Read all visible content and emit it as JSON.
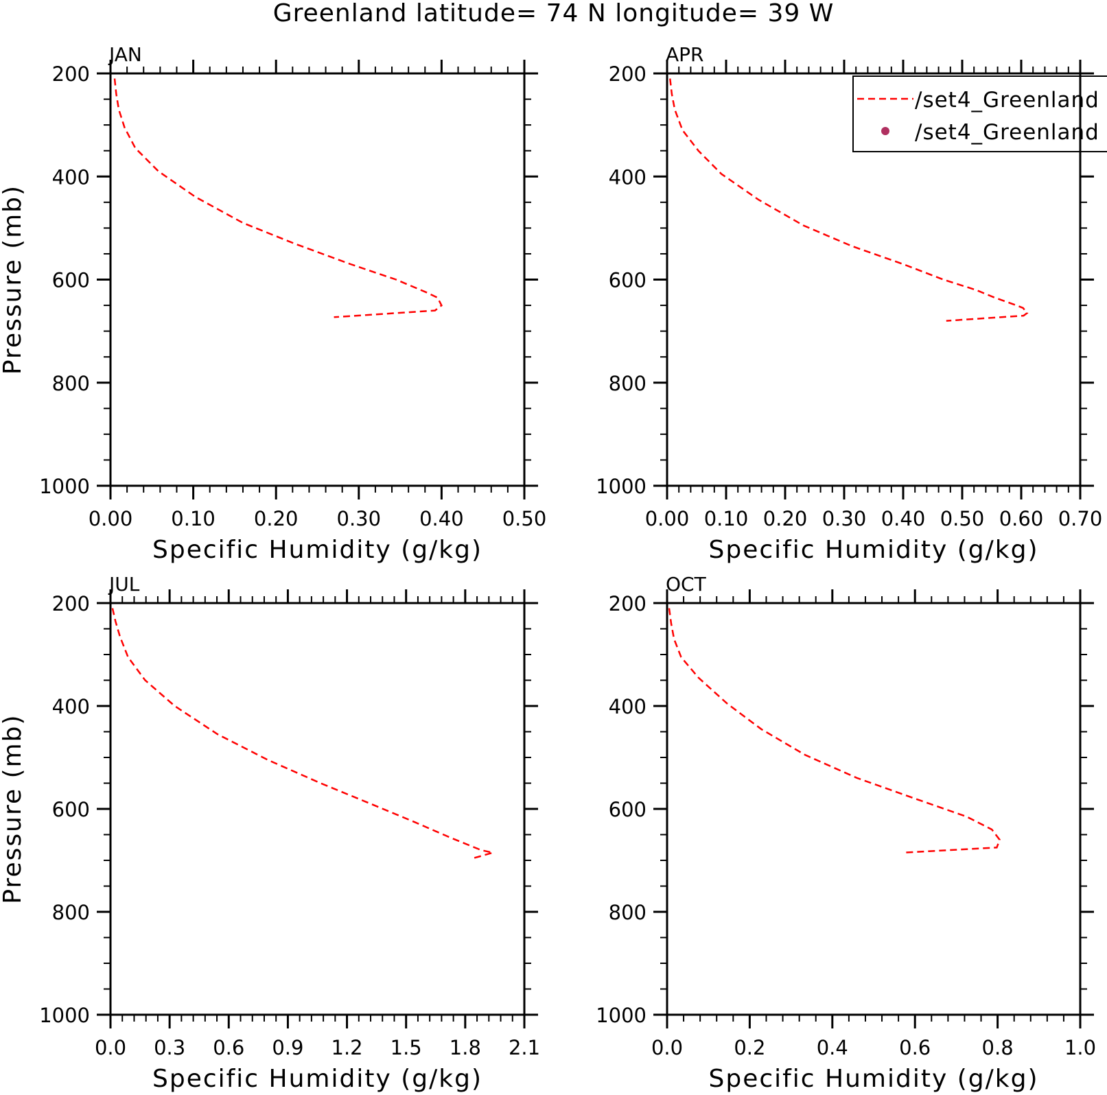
{
  "title": "Greenland  latitude= 74 N longitude= 39 W",
  "colors": {
    "model_line": "#ff0000",
    "obs_marker": "#b03060",
    "axis": "#000000"
  },
  "legend": {
    "placement": "top-right of APR panel",
    "entries": [
      {
        "label": "/set4_Greenland",
        "style": "dashed-line",
        "color": "#ff0000"
      },
      {
        "label": "/set4_Greenland",
        "style": "dot",
        "color": "#b03060"
      }
    ]
  },
  "chart_data": [
    {
      "type": "line",
      "panel_title": "JAN",
      "xlabel": "Specific Humidity (g/kg)",
      "ylabel": "Pressure (mb)",
      "xlim": [
        0.0,
        0.5
      ],
      "ylim": [
        200,
        1000
      ],
      "y_inverted": true,
      "xticks": [
        "0.00",
        "0.10",
        "0.20",
        "0.30",
        "0.40",
        "0.50"
      ],
      "yticks": [
        "200",
        "400",
        "600",
        "800",
        "1000"
      ],
      "series": [
        {
          "name": "/set4_Greenland",
          "style": "dashed",
          "x": [
            0.005,
            0.007,
            0.01,
            0.017,
            0.03,
            0.058,
            0.103,
            0.16,
            0.222,
            0.29,
            0.345,
            0.382,
            0.395,
            0.4,
            0.392,
            0.27
          ],
          "y": [
            210,
            240,
            270,
            305,
            345,
            390,
            440,
            490,
            530,
            570,
            600,
            625,
            635,
            650,
            660,
            673
          ]
        }
      ]
    },
    {
      "type": "line",
      "panel_title": "APR",
      "xlabel": "Specific Humidity (g/kg)",
      "ylabel": "",
      "xlim": [
        0.0,
        0.7
      ],
      "ylim": [
        200,
        1000
      ],
      "y_inverted": true,
      "xticks": [
        "0.00",
        "0.10",
        "0.20",
        "0.30",
        "0.40",
        "0.50",
        "0.60",
        "0.70"
      ],
      "yticks": [
        "200",
        "400",
        "600",
        "800",
        "1000"
      ],
      "series": [
        {
          "name": "/set4_Greenland",
          "style": "dashed",
          "x": [
            0.005,
            0.008,
            0.013,
            0.026,
            0.053,
            0.092,
            0.155,
            0.231,
            0.313,
            0.4,
            0.468,
            0.523,
            0.555,
            0.592,
            0.603,
            0.61,
            0.604,
            0.473
          ],
          "y": [
            210,
            240,
            270,
            310,
            350,
            395,
            445,
            495,
            535,
            570,
            600,
            620,
            635,
            650,
            655,
            665,
            670,
            680
          ]
        }
      ]
    },
    {
      "type": "line",
      "panel_title": "JUL",
      "xlabel": "Specific Humidity (g/kg)",
      "ylabel": "Pressure (mb)",
      "xlim": [
        0.0,
        2.1
      ],
      "ylim": [
        200,
        1000
      ],
      "y_inverted": true,
      "xticks": [
        "0.0",
        "0.3",
        "0.6",
        "0.9",
        "1.2",
        "1.5",
        "1.8",
        "2.1"
      ],
      "yticks": [
        "200",
        "400",
        "600",
        "800",
        "1000"
      ],
      "series": [
        {
          "name": "/set4_Greenland",
          "style": "dashed",
          "x": [
            0.01,
            0.025,
            0.048,
            0.089,
            0.176,
            0.326,
            0.544,
            0.8,
            1.066,
            1.32,
            1.54,
            1.72,
            1.88,
            1.94,
            1.83
          ],
          "y": [
            210,
            235,
            265,
            305,
            350,
            400,
            455,
            505,
            550,
            590,
            625,
            655,
            680,
            685,
            697
          ]
        }
      ]
    },
    {
      "type": "line",
      "panel_title": "OCT",
      "xlabel": "Specific Humidity (g/kg)",
      "ylabel": "",
      "xlim": [
        0.0,
        1.0
      ],
      "ylim": [
        200,
        1000
      ],
      "y_inverted": true,
      "xticks": [
        "0.0",
        "0.2",
        "0.4",
        "0.6",
        "0.8",
        "1.0"
      ],
      "yticks": [
        "200",
        "400",
        "600",
        "800",
        "1000"
      ],
      "series": [
        {
          "name": "/set4_Greenland",
          "style": "dashed",
          "x": [
            0.005,
            0.01,
            0.017,
            0.034,
            0.076,
            0.145,
            0.228,
            0.334,
            0.46,
            0.6,
            0.725,
            0.786,
            0.805,
            0.798,
            0.57
          ],
          "y": [
            210,
            240,
            270,
            305,
            345,
            395,
            445,
            495,
            540,
            580,
            615,
            640,
            660,
            675,
            685
          ]
        }
      ]
    }
  ]
}
